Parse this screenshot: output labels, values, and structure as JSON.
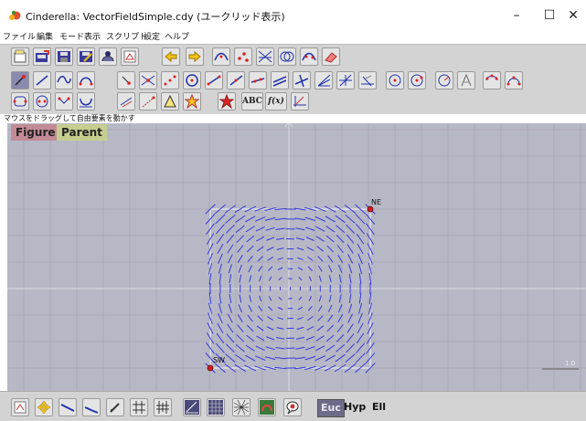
{
  "window": {
    "title": "Cinderella: VectorFieldSimple.cdy (ユークリッド表示)",
    "minimize_label": "–",
    "maximize_label": "☐",
    "close_label": "✕"
  },
  "menu": {
    "items": [
      "ファイル",
      "編集",
      "モード",
      "表示",
      "スクリプト",
      "設定",
      "ヘルプ"
    ]
  },
  "toolbar1": {
    "buttons": [
      "new-file",
      "open-file",
      "save-file",
      "save-as-file",
      "load",
      "print",
      "undo",
      "redo",
      "view-conic",
      "view-points",
      "view-lines",
      "view-circles",
      "view-all",
      "eraser"
    ]
  },
  "toolbar2": {
    "row1_buttons": [
      "move",
      "add-line",
      "add-curve",
      "add-arc",
      "add-point",
      "intersect",
      "midpoint",
      "circle",
      "segment",
      "ray",
      "line-through",
      "parallel",
      "perpendicular",
      "angle-bisector",
      "compass",
      "circle-by-radius",
      "circle-three-points",
      "reflect",
      "conic",
      "conic-five-points"
    ],
    "row2_buttons": [
      "polygon",
      "circle-center",
      "mirror",
      "locus",
      "measure-distance",
      "measure-angle",
      "measure-area",
      "transform",
      "star-polygon"
    ],
    "text_label": "ABC",
    "function_label": "f(x)"
  },
  "status": {
    "text": "マウスをドラッグして自由要素を動かす"
  },
  "canvas": {
    "figure_label": "Figure",
    "parent_label": "Parent",
    "point_ne_label": "NE",
    "point_sw_label": "SW",
    "scale_label": "1.0",
    "colors": {
      "background": "#b7b8c6",
      "grid": "#a3a4b2",
      "axis": "#d8d8e0",
      "vector": "#3737d8",
      "point": "#d41c1c",
      "box": "#ffffff"
    }
  },
  "bottombar": {
    "tools": [
      "pdf",
      "move-view",
      "line-tool",
      "pen-tool",
      "pencil",
      "grid-plus",
      "grid-hash",
      "coordinates",
      "grid-fine",
      "hex-grid",
      "snap",
      "info"
    ],
    "geometry": {
      "euclidean": "Euc",
      "hyperbolic": "Hyp",
      "elliptic": "Ell",
      "active": "Euc"
    }
  }
}
